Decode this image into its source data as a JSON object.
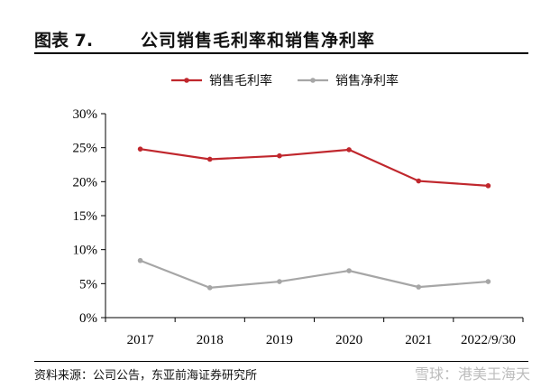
{
  "header": {
    "label": "图表 7.",
    "title": "公司销售毛利率和销售净利率"
  },
  "source": "资料来源：公司公告，东亚前海证券研究所",
  "watermark": "雪球：港美王海天",
  "colors": {
    "gross": "#c0272d",
    "net": "#a6a6a6",
    "axis": "#000000"
  },
  "chart_data": {
    "type": "line",
    "categories": [
      "2017",
      "2018",
      "2019",
      "2020",
      "2021",
      "2022/9/30"
    ],
    "series": [
      {
        "name": "销售毛利率",
        "values": [
          24.8,
          23.3,
          23.8,
          24.7,
          20.1,
          19.4
        ]
      },
      {
        "name": "销售净利率",
        "values": [
          8.4,
          4.4,
          5.3,
          6.9,
          4.5,
          5.3
        ]
      }
    ],
    "ylim": [
      0,
      30
    ],
    "yticks": [
      0,
      5,
      10,
      15,
      20,
      25,
      30
    ],
    "ytick_labels": [
      "0%",
      "5%",
      "10%",
      "15%",
      "20%",
      "25%",
      "30%"
    ],
    "legend_position": "top",
    "grid": false
  }
}
